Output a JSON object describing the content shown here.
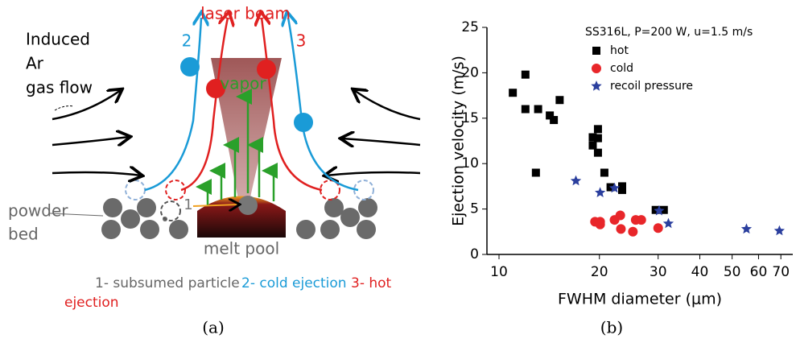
{
  "diagram": {
    "gas_label": [
      "Induced",
      "Ar",
      "gas flow"
    ],
    "beam_label": "laser beam",
    "path_2": "2",
    "path_3": "3",
    "path_1": "1",
    "vapor": "vapor",
    "powder_label": [
      "powder",
      "bed"
    ],
    "pool_label": "melt pool",
    "legend": [
      "1- subsumed particle",
      "2- cold ejection",
      "3- hot",
      "ejection"
    ],
    "caption": "(a)"
  },
  "chart_data": {
    "type": "scatter",
    "caption": "(b)",
    "legend_title": "SS316L, P=200 W, u=1.5 m/s",
    "legend_loc": "upper right",
    "x_label": "FWHM diameter (μm)",
    "y_label": "Ejection velocity (m/s)",
    "xscale": "log",
    "grid": false,
    "xlim": [
      9.2,
      76
    ],
    "xticks": [
      10,
      20,
      30,
      40,
      50,
      60,
      70
    ],
    "ylim": [
      0,
      25
    ],
    "yticks": [
      0,
      5,
      10,
      15,
      20,
      25
    ],
    "series": [
      {
        "name": "hot",
        "color": "#000000",
        "marker": "square",
        "x": [
          11.0,
          12.0,
          12.0,
          13.1,
          14.2,
          15.2,
          14.6,
          12.9,
          19.8,
          19.1,
          19.8,
          19.1,
          19.8,
          20.7,
          21.6,
          23.4,
          23.4,
          29.5,
          31.2
        ],
        "values": [
          17.8,
          19.8,
          16.0,
          16.0,
          15.3,
          17.0,
          14.8,
          9.0,
          13.8,
          12.9,
          12.8,
          12.0,
          11.2,
          9.0,
          7.4,
          7.1,
          7.5,
          4.9,
          4.9
        ]
      },
      {
        "name": "cold",
        "color": "#e8262a",
        "marker": "circle",
        "x": [
          19.4,
          20.1,
          22.2,
          23.1,
          23.2,
          25.2,
          25.7,
          26.7,
          30.0,
          20.1
        ],
        "values": [
          3.6,
          3.6,
          3.8,
          4.3,
          2.8,
          2.5,
          3.8,
          3.8,
          2.9,
          3.3
        ]
      },
      {
        "name": "recoil pressure",
        "color": "#2b3f9e",
        "marker": "star",
        "x": [
          17.0,
          20.1,
          22.2,
          30.2,
          32.2,
          55.2,
          69.3
        ],
        "values": [
          8.1,
          6.8,
          7.3,
          4.8,
          3.4,
          2.8,
          2.6
        ]
      }
    ]
  }
}
